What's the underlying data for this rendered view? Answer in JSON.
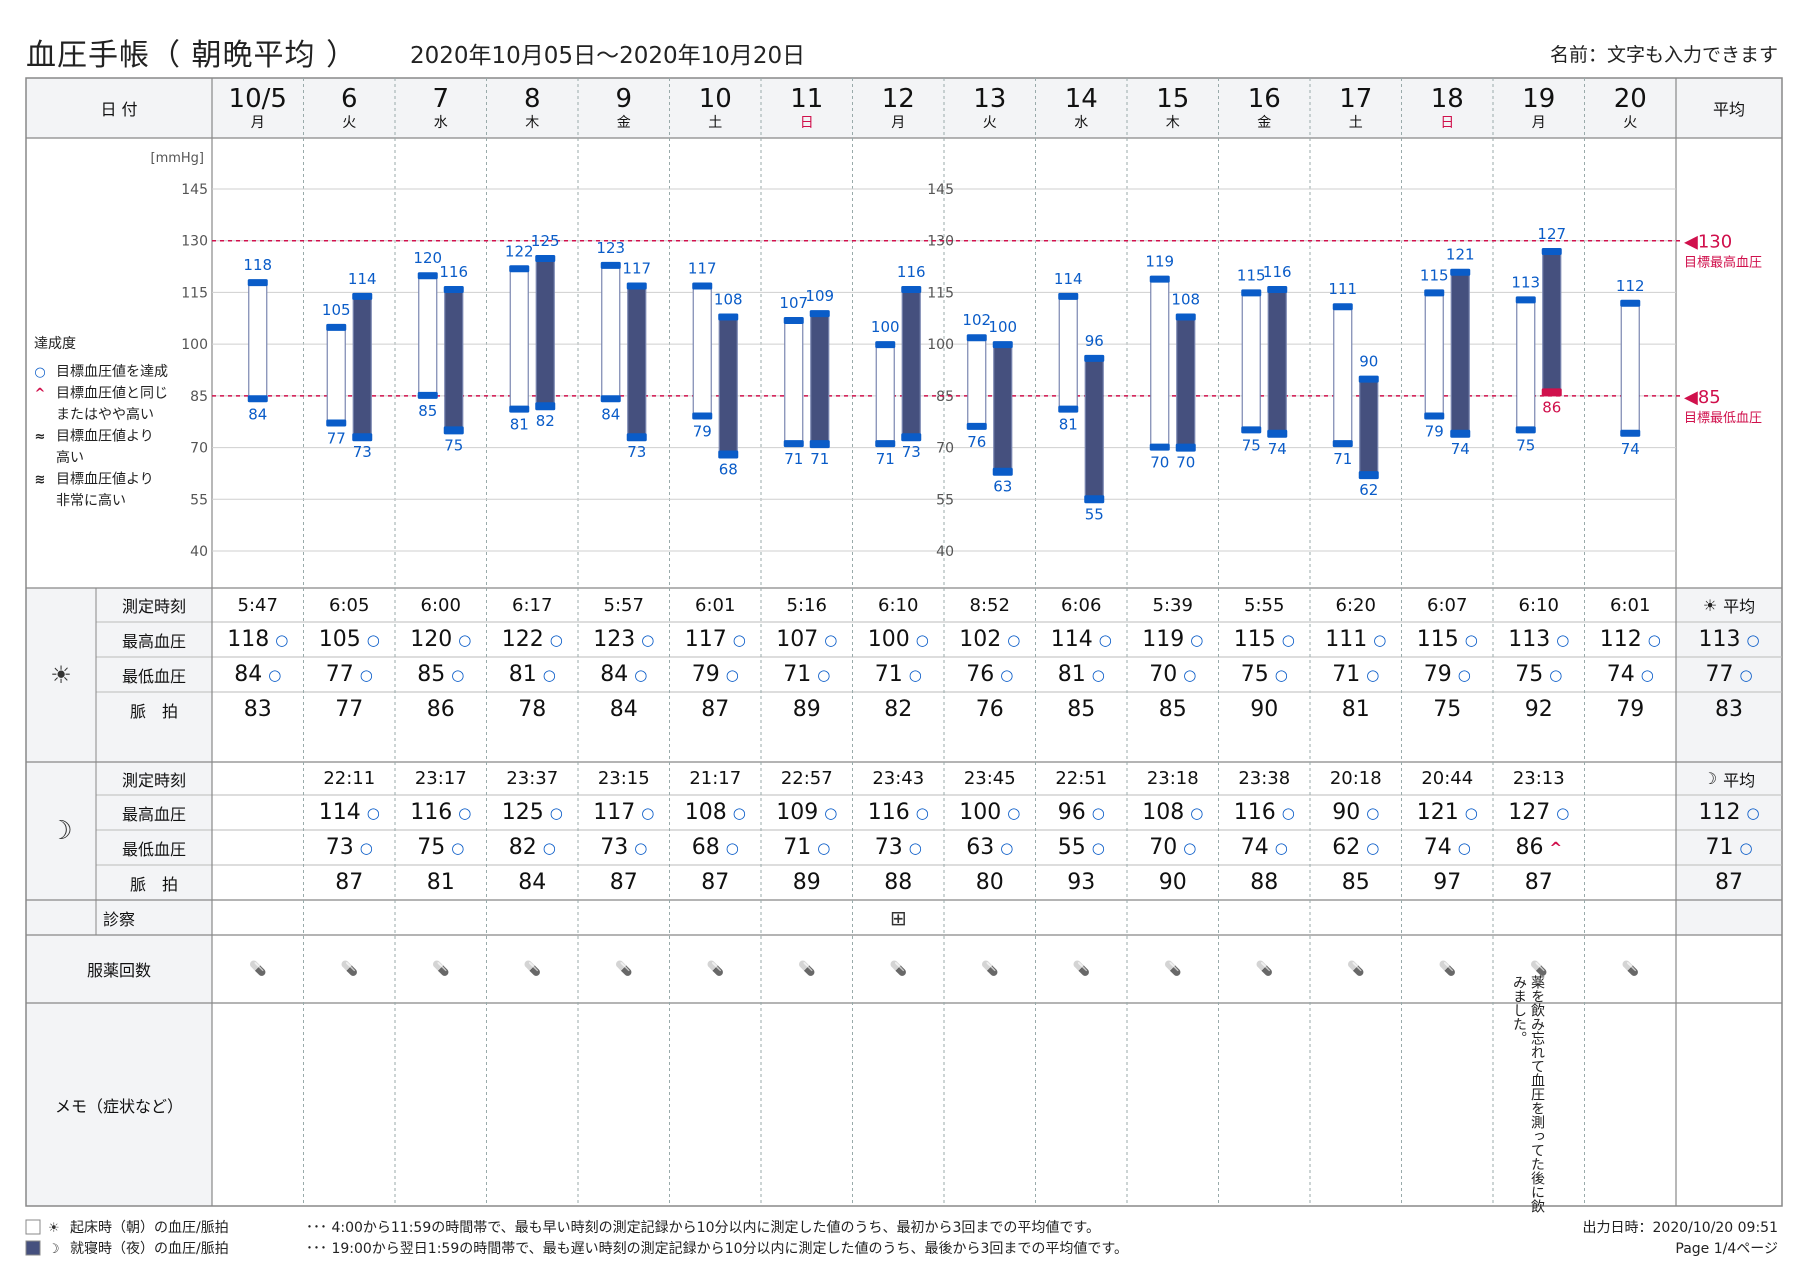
{
  "header": {
    "title": "血圧手帳（ 朝晩平均 ）",
    "period": "2020年10月05日～2020年10月20日",
    "name_label": "名前：文字も入力できます"
  },
  "table": {
    "date_label": "日 付",
    "avg_label": "平均",
    "days": [
      {
        "day": "10/5",
        "wd": "月",
        "holiday": false
      },
      {
        "day": "6",
        "wd": "火",
        "holiday": false
      },
      {
        "day": "7",
        "wd": "水",
        "holiday": false
      },
      {
        "day": "8",
        "wd": "木",
        "holiday": false
      },
      {
        "day": "9",
        "wd": "金",
        "holiday": false
      },
      {
        "day": "10",
        "wd": "土",
        "holiday": false
      },
      {
        "day": "11",
        "wd": "日",
        "holiday": true
      },
      {
        "day": "12",
        "wd": "月",
        "holiday": false
      },
      {
        "day": "13",
        "wd": "火",
        "holiday": false
      },
      {
        "day": "14",
        "wd": "水",
        "holiday": false
      },
      {
        "day": "15",
        "wd": "木",
        "holiday": false
      },
      {
        "day": "16",
        "wd": "金",
        "holiday": false
      },
      {
        "day": "17",
        "wd": "土",
        "holiday": false
      },
      {
        "day": "18",
        "wd": "日",
        "holiday": true
      },
      {
        "day": "19",
        "wd": "月",
        "holiday": false
      },
      {
        "day": "20",
        "wd": "火",
        "holiday": false
      }
    ],
    "row_labels": {
      "time": "測定時刻",
      "sys": "最高血圧",
      "dia": "最低血圧",
      "pulse": "脈　拍",
      "clinic": "診察",
      "medicine": "服薬回数",
      "memo": "メモ（症状など）"
    },
    "morning": {
      "avg_label": "平均",
      "time": [
        "5:47",
        "6:05",
        "6:00",
        "6:17",
        "5:57",
        "6:01",
        "5:16",
        "6:10",
        "8:52",
        "6:06",
        "5:39",
        "5:55",
        "6:20",
        "6:07",
        "6:10",
        "6:01"
      ],
      "sys": [
        118,
        105,
        120,
        122,
        123,
        117,
        107,
        100,
        102,
        114,
        119,
        115,
        111,
        115,
        113,
        112
      ],
      "dia": [
        84,
        77,
        85,
        81,
        84,
        79,
        71,
        71,
        76,
        81,
        70,
        75,
        71,
        79,
        75,
        74
      ],
      "pulse": [
        83,
        77,
        86,
        78,
        84,
        87,
        89,
        82,
        76,
        85,
        85,
        90,
        81,
        75,
        92,
        79
      ],
      "avg": {
        "sys": 113,
        "dia": 77,
        "pulse": 83
      }
    },
    "evening": {
      "avg_label": "平均",
      "time": [
        "",
        "22:11",
        "23:17",
        "23:37",
        "23:15",
        "21:17",
        "22:57",
        "23:43",
        "23:45",
        "22:51",
        "23:18",
        "23:38",
        "20:18",
        "20:44",
        "23:13",
        ""
      ],
      "sys": [
        null,
        114,
        116,
        125,
        117,
        108,
        109,
        116,
        100,
        96,
        108,
        116,
        90,
        121,
        127,
        null
      ],
      "dia": [
        null,
        73,
        75,
        82,
        73,
        68,
        71,
        73,
        63,
        55,
        70,
        74,
        62,
        74,
        86,
        null
      ],
      "dia_mark": [
        null,
        "ok",
        "ok",
        "ok",
        "ok",
        "ok",
        "ok",
        "ok",
        "ok",
        "ok",
        "ok",
        "ok",
        "ok",
        "ok",
        "warn",
        null
      ],
      "pulse": [
        null,
        87,
        81,
        84,
        87,
        87,
        89,
        88,
        80,
        93,
        90,
        88,
        85,
        97,
        87,
        null
      ],
      "avg": {
        "sys": 112,
        "dia": 71,
        "pulse": 87
      }
    },
    "clinic_day_index": 7,
    "memo_text": "薬を飲み忘れて血圧を測ってた後に飲みました。"
  },
  "chart_data": {
    "type": "floating-bar",
    "unit_label": "[mmHg]",
    "y_ticks": [
      40,
      55,
      70,
      85,
      100,
      115,
      130,
      145
    ],
    "ylim": [
      40,
      145
    ],
    "grid": true,
    "categories": [
      "10/5",
      "6",
      "7",
      "8",
      "9",
      "10",
      "11",
      "12",
      "13",
      "14",
      "15",
      "16",
      "17",
      "18",
      "19",
      "20"
    ],
    "series": [
      {
        "name": "起床時（朝）の血圧/脈拍",
        "high": [
          118,
          105,
          120,
          122,
          123,
          117,
          107,
          100,
          102,
          114,
          119,
          115,
          111,
          115,
          113,
          112
        ],
        "low": [
          84,
          77,
          85,
          81,
          84,
          79,
          71,
          71,
          76,
          81,
          70,
          75,
          71,
          79,
          75,
          74
        ]
      },
      {
        "name": "就寝時（夜）の血圧/脈拍",
        "high": [
          null,
          114,
          116,
          125,
          117,
          108,
          109,
          116,
          100,
          96,
          108,
          116,
          90,
          121,
          127,
          null
        ],
        "low": [
          null,
          73,
          75,
          82,
          73,
          68,
          71,
          73,
          63,
          55,
          70,
          74,
          62,
          74,
          86,
          null
        ]
      }
    ],
    "target_high": 130,
    "target_low": 85,
    "target_high_label": "目標最高血圧",
    "target_low_label": "目標最低血圧",
    "target_high_text": "◀130",
    "target_low_text": "◀85",
    "legend_title": "達成度",
    "legend_items": [
      {
        "sym": "○",
        "text": "目標血圧値を達成"
      },
      {
        "sym": "^",
        "text": "目標血圧値と同じ"
      },
      {
        "sym": "",
        "text": "またはやや高い"
      },
      {
        "sym": "≈",
        "text": "目標血圧値より"
      },
      {
        "sym": "",
        "text": "高い"
      },
      {
        "sym": "≋",
        "text": "目標血圧値より"
      },
      {
        "sym": "",
        "text": "非常に高い"
      }
    ],
    "colors": {
      "bar_border": "#0a5cc8",
      "evening_fill": "#45507e",
      "warn": "#d0104c",
      "grid": "#cccccc",
      "target": "#d0104c",
      "value_text": "#0a5cc8"
    }
  },
  "footer": {
    "legend_morning": "起床時（朝）の血圧/脈拍",
    "legend_evening": "就寝時（夜）の血圧/脈拍",
    "note_morning": "･･･ 4:00から11:59の時間帯で、最も早い時刻の測定記録から10分以内に測定した値のうち、最初から3回までの平均値です。",
    "note_evening": "･･･ 19:00から翌日1:59の時間帯で、最も遅い時刻の測定記録から10分以内に測定した値のうち、最後から3回までの平均値です。",
    "output_date": "出力日時：2020/10/20 09:51",
    "page": "Page 1/4ページ"
  }
}
